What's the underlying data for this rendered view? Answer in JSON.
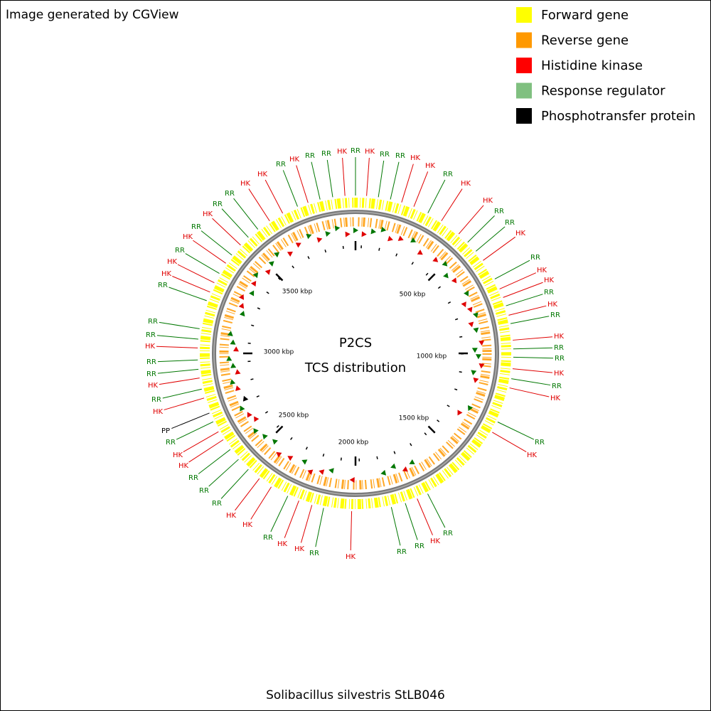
{
  "header": {
    "credit": "Image generated by CGView"
  },
  "legend": [
    {
      "label": "Forward gene",
      "color": "#ffff00"
    },
    {
      "label": "Reverse gene",
      "color": "#ff9900"
    },
    {
      "label": "Histidine kinase",
      "color": "#ff0000"
    },
    {
      "label": "Response regulator",
      "color": "#80c080"
    },
    {
      "label": "Phosphotransfer protein",
      "color": "#000000"
    }
  ],
  "center": {
    "title": "P2CS",
    "subtitle": "TCS distribution"
  },
  "organism": "Solibacillus silvestris StLB046",
  "ticks": [
    "500 kbp",
    "1000 kbp",
    "1500 kbp",
    "2000 kbp",
    "2500 kbp",
    "3000 kbp",
    "3500 kbp"
  ],
  "features": [
    {
      "label": "HK",
      "color": "#e00000"
    },
    {
      "label": "RR",
      "color": "#007700"
    },
    {
      "label": "RR",
      "color": "#007700"
    },
    {
      "label": "HK",
      "color": "#e00000"
    },
    {
      "label": "HK",
      "color": "#e00000"
    },
    {
      "label": "RR",
      "color": "#007700"
    },
    {
      "label": "HK",
      "color": "#e00000"
    },
    {
      "label": "HK",
      "color": "#e00000"
    },
    {
      "label": "RR",
      "color": "#007700"
    },
    {
      "label": "RR",
      "color": "#007700"
    },
    {
      "label": "HK",
      "color": "#e00000"
    },
    {
      "label": "RR",
      "color": "#007700"
    },
    {
      "label": "HK",
      "color": "#e00000"
    },
    {
      "label": "HK",
      "color": "#e00000"
    },
    {
      "label": "RR",
      "color": "#007700"
    },
    {
      "label": "HK",
      "color": "#e00000"
    },
    {
      "label": "RR",
      "color": "#007700"
    },
    {
      "label": "HK",
      "color": "#e00000"
    },
    {
      "label": "RR",
      "color": "#007700"
    },
    {
      "label": "RR",
      "color": "#007700"
    },
    {
      "label": "HK",
      "color": "#e00000"
    },
    {
      "label": "RR",
      "color": "#007700"
    },
    {
      "label": "HK",
      "color": "#e00000"
    },
    {
      "label": "RR",
      "color": "#007700"
    },
    {
      "label": "HK",
      "color": "#e00000"
    },
    {
      "label": "RR",
      "color": "#007700"
    },
    {
      "label": "HK",
      "color": "#e00000"
    },
    {
      "label": "RR",
      "color": "#007700"
    },
    {
      "label": "RR",
      "color": "#007700"
    },
    {
      "label": "HK",
      "color": "#e00000"
    },
    {
      "label": "RR",
      "color": "#007700"
    },
    {
      "label": "HK",
      "color": "#e00000"
    },
    {
      "label": "HK",
      "color": "#e00000"
    },
    {
      "label": "RR",
      "color": "#007700"
    },
    {
      "label": "HK",
      "color": "#e00000"
    },
    {
      "label": "HK",
      "color": "#e00000"
    },
    {
      "label": "RR",
      "color": "#007700"
    },
    {
      "label": "RR",
      "color": "#007700"
    },
    {
      "label": "RR",
      "color": "#007700"
    },
    {
      "label": "HK",
      "color": "#e00000"
    },
    {
      "label": "HK",
      "color": "#e00000"
    },
    {
      "label": "RR",
      "color": "#007700"
    },
    {
      "label": "PP",
      "color": "#000000"
    },
    {
      "label": "HK",
      "color": "#e00000"
    },
    {
      "label": "RR",
      "color": "#007700"
    },
    {
      "label": "HK",
      "color": "#e00000"
    },
    {
      "label": "RR",
      "color": "#007700"
    },
    {
      "label": "RR",
      "color": "#007700"
    },
    {
      "label": "HK",
      "color": "#e00000"
    },
    {
      "label": "RR",
      "color": "#007700"
    },
    {
      "label": "RR",
      "color": "#007700"
    },
    {
      "label": "RR",
      "color": "#007700"
    },
    {
      "label": "HK",
      "color": "#e00000"
    },
    {
      "label": "HK",
      "color": "#e00000"
    },
    {
      "label": "RR",
      "color": "#007700"
    },
    {
      "label": "HK",
      "color": "#e00000"
    },
    {
      "label": "RR",
      "color": "#007700"
    },
    {
      "label": "HK",
      "color": "#e00000"
    },
    {
      "label": "RR",
      "color": "#007700"
    },
    {
      "label": "RR",
      "color": "#007700"
    },
    {
      "label": "HK",
      "color": "#e00000"
    },
    {
      "label": "HK",
      "color": "#e00000"
    },
    {
      "label": "RR",
      "color": "#007700"
    },
    {
      "label": "HK",
      "color": "#e00000"
    },
    {
      "label": "RR",
      "color": "#007700"
    },
    {
      "label": "RR",
      "color": "#007700"
    },
    {
      "label": "HK",
      "color": "#e00000"
    },
    {
      "label": "RR",
      "color": "#007700"
    }
  ]
}
